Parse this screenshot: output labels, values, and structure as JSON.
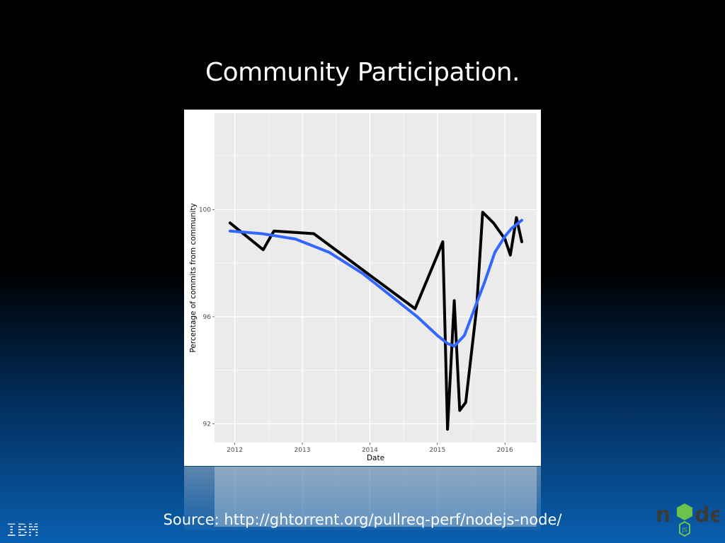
{
  "slide": {
    "title": "Community Participation.",
    "source": "Source: http://ghtorrent.org/pullreq-perf/nodejs-node/",
    "ibm_logo_text": "IBM",
    "node_logo_text": "node",
    "node_logo_badge": "JS"
  },
  "colors": {
    "panel_bg": "#ebebeb",
    "grid": "#ffffff",
    "data_line": "#000000",
    "smooth_line": "#3366ff"
  },
  "chart_data": {
    "type": "line",
    "title": "",
    "xlabel": "Date",
    "ylabel": "Percentage of commits from community",
    "xlim": [
      2011.7,
      2016.47
    ],
    "ylim": [
      91.3,
      103.6
    ],
    "x_ticks": [
      2012,
      2013,
      2014,
      2015,
      2016
    ],
    "x_tick_labels": [
      "2012",
      "2013",
      "2014",
      "2015",
      "2016"
    ],
    "y_ticks": [
      92,
      96,
      100
    ],
    "y_tick_labels": [
      "92",
      "96",
      "100"
    ],
    "grid": true,
    "series": [
      {
        "style": "raw",
        "x": [
          2011.93,
          2012.42,
          2012.58,
          2013.17,
          2014.67,
          2015.0,
          2015.08,
          2015.15,
          2015.25,
          2015.33,
          2015.42,
          2015.58,
          2015.67,
          2015.83,
          2016.0,
          2016.08,
          2016.17,
          2016.25
        ],
        "y": [
          99.5,
          98.5,
          99.2,
          99.1,
          96.3,
          98.3,
          98.8,
          91.8,
          96.6,
          92.5,
          92.8,
          96.3,
          99.9,
          99.5,
          98.9,
          98.3,
          99.7,
          98.8
        ]
      },
      {
        "style": "smooth",
        "x": [
          2011.93,
          2012.4,
          2012.9,
          2013.4,
          2013.9,
          2014.3,
          2014.7,
          2015.0,
          2015.15,
          2015.25,
          2015.4,
          2015.55,
          2015.7,
          2015.85,
          2016.0,
          2016.1,
          2016.25
        ],
        "y": [
          99.2,
          99.1,
          98.9,
          98.4,
          97.6,
          96.8,
          96.0,
          95.3,
          95.0,
          94.9,
          95.3,
          96.3,
          97.3,
          98.4,
          99.0,
          99.3,
          99.6
        ]
      }
    ]
  }
}
